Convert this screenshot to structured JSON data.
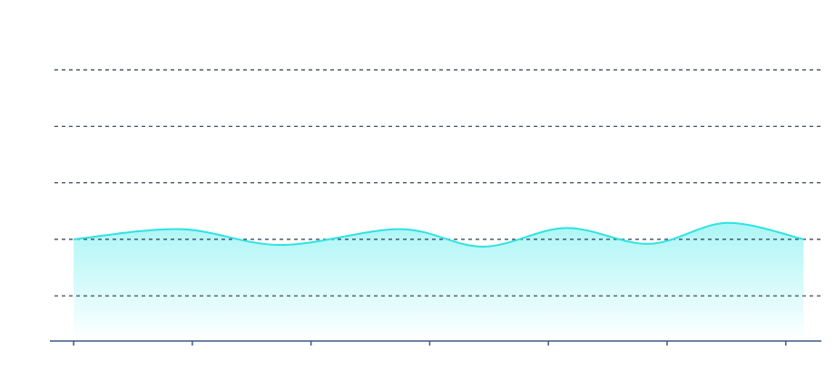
{
  "chart_data": {
    "type": "area",
    "x": [
      0,
      0.9,
      1.75,
      2.75,
      3.45,
      4.15,
      4.85,
      5.5,
      6.15
    ],
    "series": [
      {
        "color": "#2ee3e3",
        "values": [
          2.0,
          2.18,
          1.9,
          2.18,
          1.87,
          2.2,
          1.92,
          2.29,
          2.0
        ]
      }
    ],
    "xlim": [
      -0.2,
      6.3
    ],
    "xticks": [
      0,
      1,
      2,
      3,
      4,
      5,
      6
    ],
    "ylim": [
      0.2,
      5
    ],
    "yticks": [
      1,
      2,
      3,
      4,
      5
    ],
    "grid": true,
    "smooth": true
  }
}
